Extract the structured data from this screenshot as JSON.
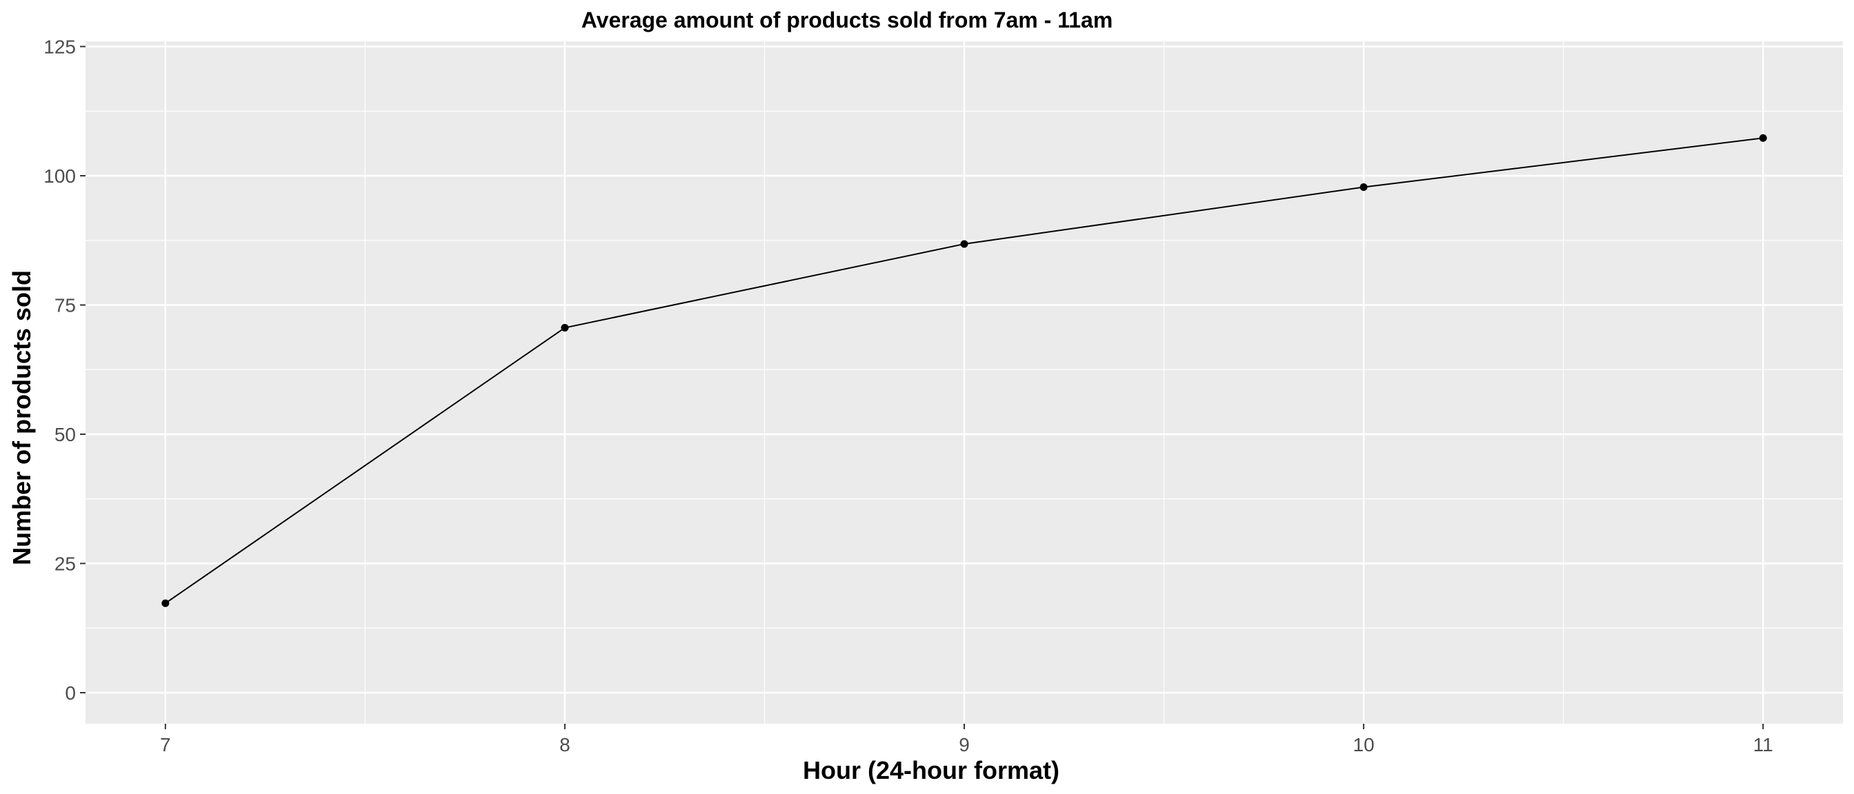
{
  "chart_data": {
    "type": "line",
    "title": "Average amount of products sold from 7am - 11am",
    "xlabel": "Hour (24-hour format)",
    "ylabel": "Number of products sold",
    "x": [
      7,
      8,
      9,
      10,
      11
    ],
    "series": [
      {
        "values": [
          17.3,
          70.6,
          86.8,
          97.8,
          107.3
        ]
      }
    ],
    "xlim": [
      6.8,
      11.2
    ],
    "ylim": [
      -6,
      126
    ],
    "xticks": [
      7,
      8,
      9,
      10,
      11
    ],
    "xtick_labels": [
      "7",
      "8",
      "9",
      "10",
      "11"
    ],
    "yticks": [
      0,
      25,
      50,
      75,
      100,
      125
    ],
    "ytick_labels": [
      "0",
      "25",
      "50",
      "75",
      "100",
      "125"
    ],
    "grid": true,
    "legend": "none",
    "colors": {
      "panel_background": "#ebebeb",
      "grid": "#ffffff",
      "line": "#000000",
      "point": "#000000",
      "tick_text": "#4d4d4d",
      "tick_mark": "#333333"
    }
  }
}
